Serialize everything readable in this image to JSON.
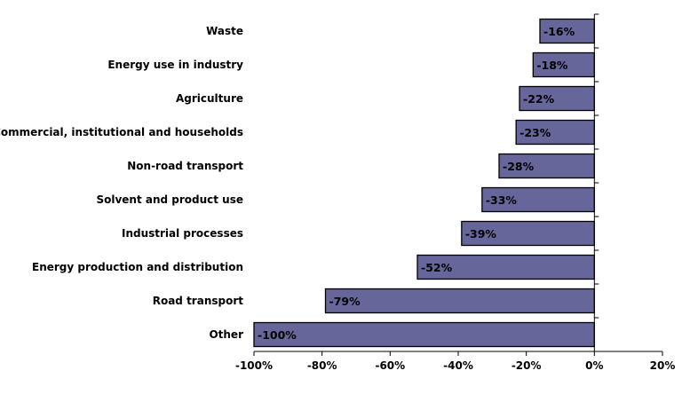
{
  "chart_data": {
    "type": "bar",
    "orientation": "horizontal",
    "categories": [
      "Waste",
      "Energy use in industry",
      "Agriculture",
      "Commercial, institutional and households",
      "Non-road transport",
      "Solvent and product use",
      "Industrial processes",
      "Energy production and distribution",
      "Road transport",
      "Other"
    ],
    "values": [
      -16,
      -18,
      -22,
      -23,
      -28,
      -33,
      -39,
      -52,
      -79,
      -100
    ],
    "data_labels": [
      "-16%",
      "-18%",
      "-22%",
      "-23%",
      "-28%",
      "-33%",
      "-39%",
      "-52%",
      "-79%",
      "-100%"
    ],
    "xlim": [
      -100,
      20
    ],
    "xticks": [
      -100,
      -80,
      -60,
      -40,
      -20,
      0,
      20
    ],
    "xtick_labels": [
      "-100%",
      "-80%",
      "-60%",
      "-40%",
      "-20%",
      "0%",
      "20%"
    ],
    "grid": false,
    "legend": "none",
    "colors": {
      "bar_fill": "#66669a",
      "bar_stroke": "#000000",
      "axis": "#000000"
    }
  }
}
